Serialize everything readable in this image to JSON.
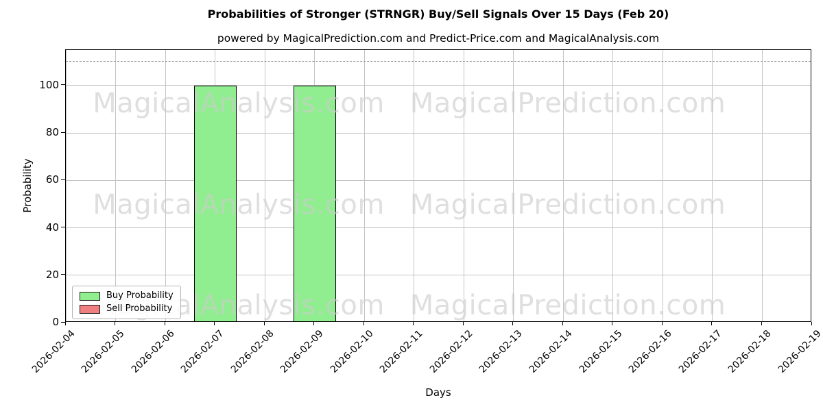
{
  "title": "Probabilities of Stronger (STRNGR) Buy/Sell Signals Over 15 Days (Feb 20)",
  "subtitle": "powered by MagicalPrediction.com and Predict-Price.com and MagicalAnalysis.com",
  "chart_data": {
    "type": "bar",
    "categories": [
      "2026-02-04",
      "2026-02-05",
      "2026-02-06",
      "2026-02-07",
      "2026-02-08",
      "2026-02-09",
      "2026-02-10",
      "2026-02-11",
      "2026-02-12",
      "2026-02-13",
      "2026-02-14",
      "2026-02-15",
      "2026-02-16",
      "2026-02-17",
      "2026-02-18",
      "2026-02-19"
    ],
    "series": [
      {
        "name": "Buy Probability",
        "color": "#90EE90",
        "values": [
          0,
          0,
          0,
          100,
          0,
          100,
          0,
          0,
          0,
          0,
          0,
          0,
          0,
          0,
          0,
          0
        ]
      },
      {
        "name": "Sell Probability",
        "color": "#F08080",
        "values": [
          0,
          0,
          0,
          0,
          0,
          0,
          0,
          0,
          0,
          0,
          0,
          0,
          0,
          0,
          0,
          0
        ]
      }
    ],
    "xlabel": "Days",
    "ylabel": "Probability",
    "yticks": [
      0,
      20,
      40,
      60,
      80,
      100
    ],
    "ylim": [
      0,
      115
    ],
    "threshold_line": 110,
    "grid": true,
    "x_tick_rotation": 45,
    "legend_position": "lower left",
    "bar_edge_color": "#000000",
    "grid_color": "#c4c4c4",
    "threshold_color": "#8c8c8c",
    "watermarks": [
      "MagicalAnalysis.com",
      "MagicalPrediction.com"
    ]
  }
}
